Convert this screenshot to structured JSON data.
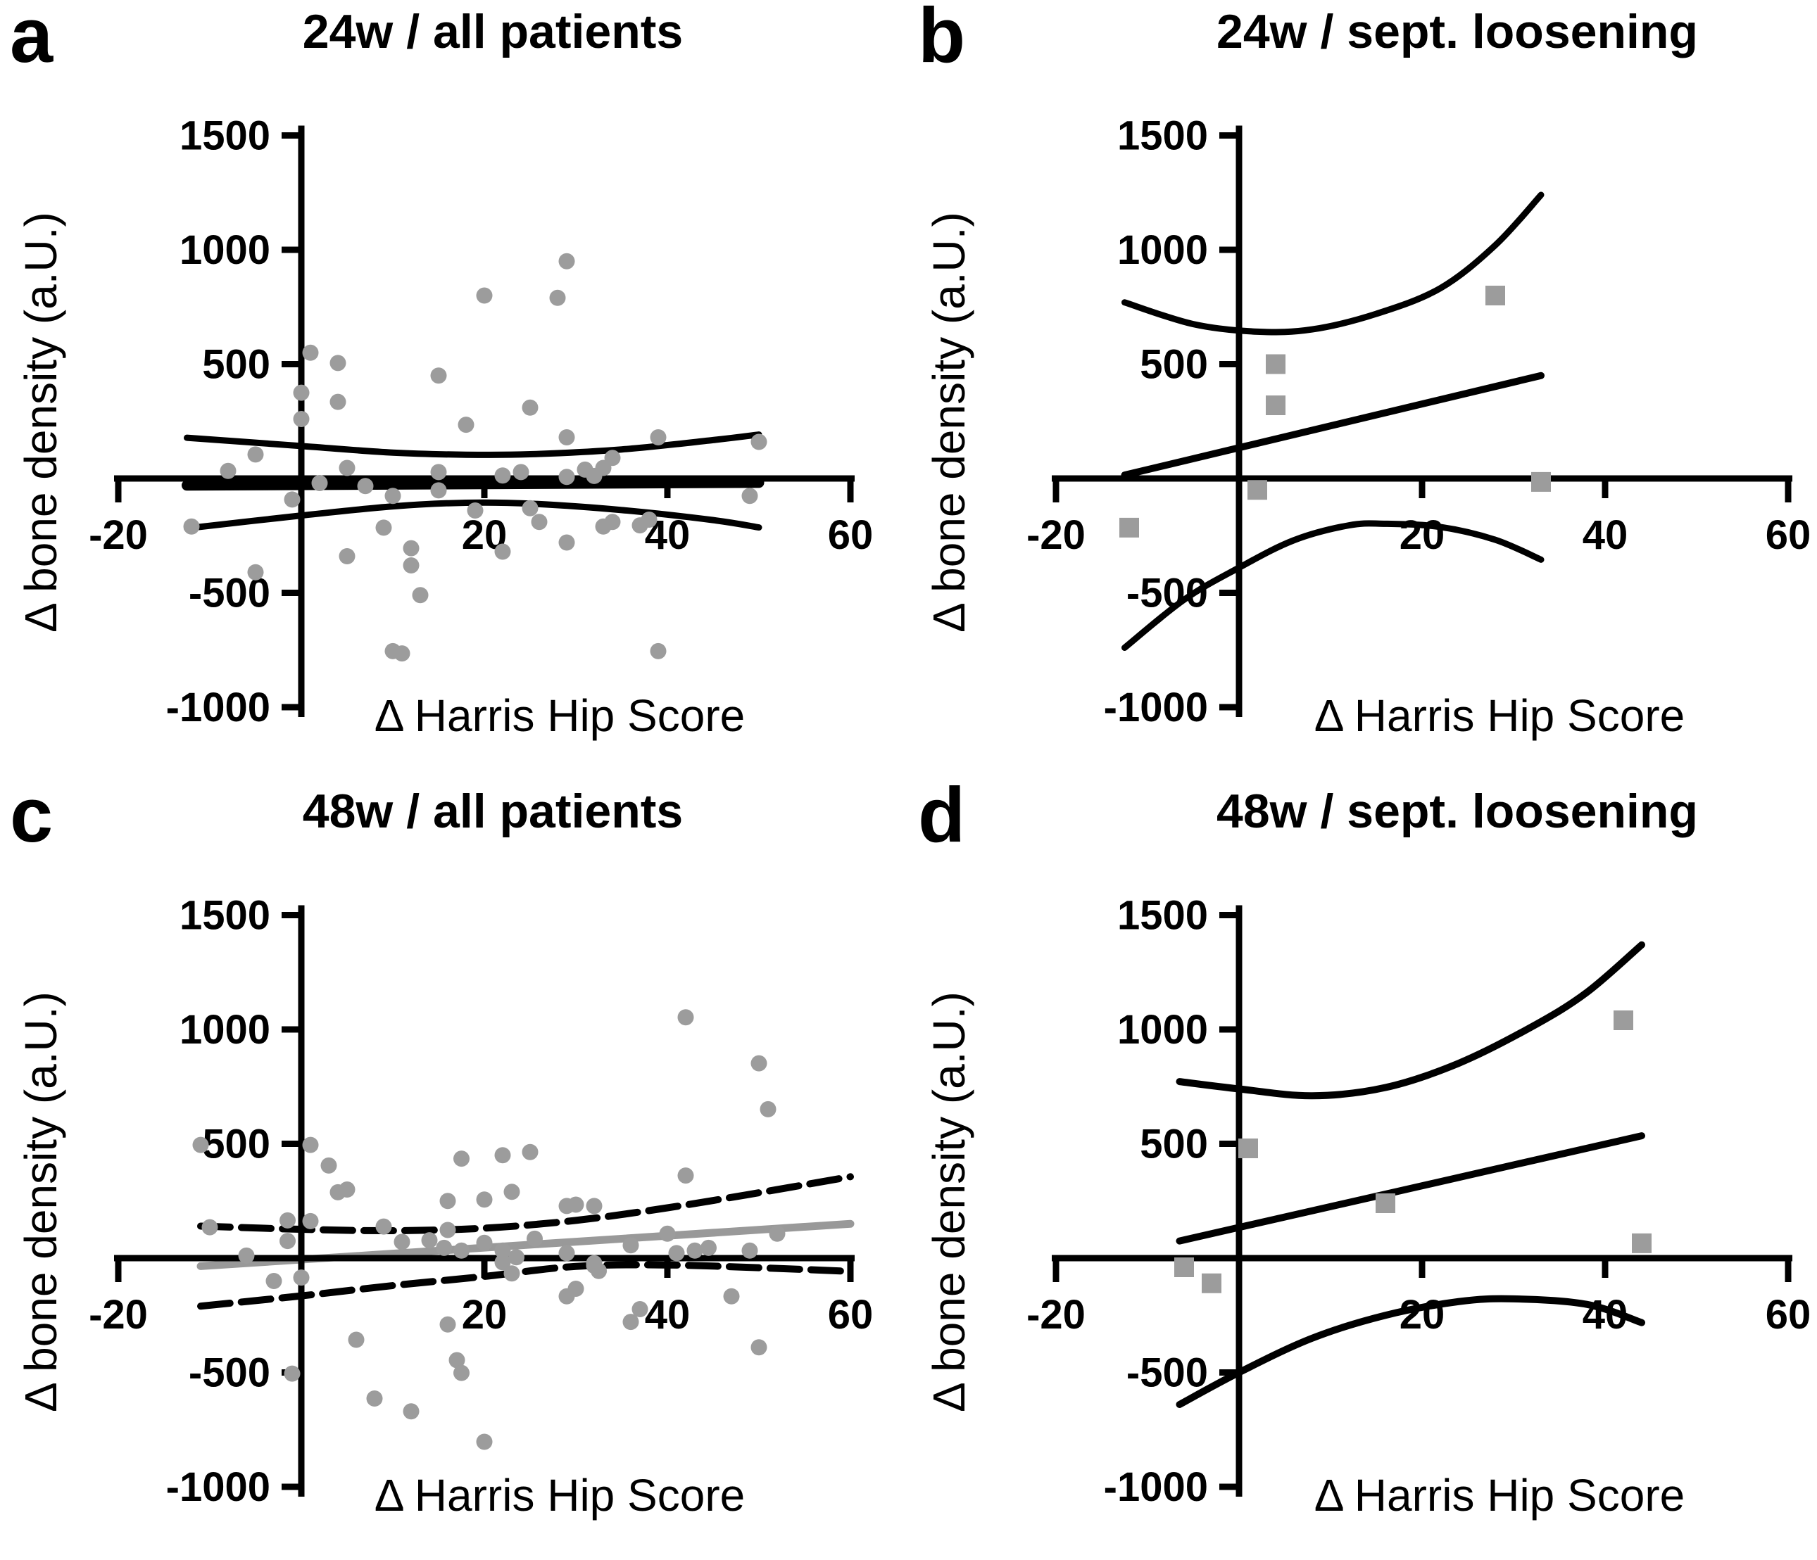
{
  "figure": {
    "background": "#ffffff",
    "marker_color": "#9c9c9c",
    "line_color": "#000000",
    "gray_line_color": "#999999"
  },
  "chart_data": [
    {
      "id": "a",
      "panel_label": "a",
      "title": "24w / all patients",
      "type": "scatter",
      "marker": "circle",
      "xlabel": "Δ Harris Hip Score",
      "ylabel": "Δ bone density (a.U.)",
      "xlim": [
        -20,
        60
      ],
      "ylim": [
        -1000,
        1500
      ],
      "xticks": [
        -20,
        20,
        40,
        60
      ],
      "yticks": [
        1500,
        1000,
        500,
        -500,
        -1000
      ],
      "grid": false,
      "legend": "none",
      "marker_color": "#9c9c9c",
      "points": [
        [
          1,
          550
        ],
        [
          4,
          505
        ],
        [
          4,
          335
        ],
        [
          0,
          375
        ],
        [
          0,
          260
        ],
        [
          15,
          450
        ],
        [
          20,
          800
        ],
        [
          29,
          950
        ],
        [
          28,
          790
        ],
        [
          25,
          310
        ],
        [
          18,
          235
        ],
        [
          29,
          180
        ],
        [
          39,
          180
        ],
        [
          50,
          160
        ],
        [
          -5,
          105
        ],
        [
          -8,
          33
        ],
        [
          -12,
          -210
        ],
        [
          -5,
          -410
        ],
        [
          -1,
          -92
        ],
        [
          2,
          -20
        ],
        [
          5,
          46
        ],
        [
          5,
          -340
        ],
        [
          7,
          -33
        ],
        [
          9,
          -215
        ],
        [
          10,
          -76
        ],
        [
          12,
          -305
        ],
        [
          12,
          -380
        ],
        [
          13,
          -510
        ],
        [
          10,
          -755
        ],
        [
          11,
          -765
        ],
        [
          15,
          28
        ],
        [
          15,
          -52
        ],
        [
          19,
          -140
        ],
        [
          22,
          13
        ],
        [
          22,
          -320
        ],
        [
          24,
          28
        ],
        [
          25,
          -130
        ],
        [
          26,
          -190
        ],
        [
          29,
          -280
        ],
        [
          29,
          7
        ],
        [
          31,
          39
        ],
        [
          32,
          11
        ],
        [
          33,
          46
        ],
        [
          33,
          -210
        ],
        [
          34,
          -190
        ],
        [
          34,
          90
        ],
        [
          37,
          -205
        ],
        [
          38,
          -180
        ],
        [
          39,
          -755
        ],
        [
          49,
          -76
        ]
      ],
      "regression": {
        "points": [
          [
            -12.5,
            -30
          ],
          [
            50,
            -18
          ]
        ],
        "color": "#000000",
        "width": 15,
        "dashed": false
      },
      "ci_upper": {
        "points": [
          [
            -12.5,
            178
          ],
          [
            0,
            142
          ],
          [
            10,
            113
          ],
          [
            18,
            104
          ],
          [
            25,
            106
          ],
          [
            35,
            127
          ],
          [
            45,
            168
          ],
          [
            50,
            192
          ]
        ],
        "color": "#000000",
        "width": 9,
        "dashed": false
      },
      "ci_lower": {
        "points": [
          [
            -12.5,
            -218
          ],
          [
            0,
            -162
          ],
          [
            10,
            -122
          ],
          [
            18,
            -106
          ],
          [
            25,
            -110
          ],
          [
            35,
            -138
          ],
          [
            45,
            -182
          ],
          [
            50,
            -214
          ]
        ],
        "color": "#000000",
        "width": 9,
        "dashed": false
      }
    },
    {
      "id": "b",
      "panel_label": "b",
      "title": "24w / sept. loosening",
      "type": "scatter",
      "marker": "square",
      "xlabel": "Δ Harris Hip Score",
      "ylabel": "Δ bone density (a.U.)",
      "xlim": [
        -20,
        60
      ],
      "ylim": [
        -1000,
        1500
      ],
      "xticks": [
        -20,
        20,
        40,
        60
      ],
      "yticks": [
        1500,
        1000,
        500,
        -500,
        -1000
      ],
      "grid": false,
      "legend": "none",
      "marker_color": "#9c9c9c",
      "points": [
        [
          -12,
          -215
        ],
        [
          2,
          -50
        ],
        [
          4,
          500
        ],
        [
          4,
          320
        ],
        [
          28,
          800
        ],
        [
          33,
          -15
        ]
      ],
      "regression": {
        "points": [
          [
            -12.5,
            15
          ],
          [
            33,
            450
          ]
        ],
        "color": "#000000",
        "width": 10,
        "dashed": false
      },
      "ci_upper": {
        "points": [
          [
            -12.5,
            770
          ],
          [
            -5,
            675
          ],
          [
            2,
            642
          ],
          [
            8,
            652
          ],
          [
            15,
            720
          ],
          [
            22,
            832
          ],
          [
            28,
            1020
          ],
          [
            33,
            1240
          ]
        ],
        "color": "#000000",
        "width": 9,
        "dashed": false
      },
      "ci_lower": {
        "points": [
          [
            -12.5,
            -740
          ],
          [
            -6,
            -530
          ],
          [
            0,
            -390
          ],
          [
            6,
            -270
          ],
          [
            12,
            -205
          ],
          [
            16,
            -198
          ],
          [
            22,
            -212
          ],
          [
            28,
            -268
          ],
          [
            33,
            -355
          ]
        ],
        "color": "#000000",
        "width": 9,
        "dashed": false
      }
    },
    {
      "id": "c",
      "panel_label": "c",
      "title": "48w / all patients",
      "type": "scatter",
      "marker": "circle",
      "xlabel": "Δ Harris Hip Score",
      "ylabel": "Δ bone density (a.U.)",
      "xlim": [
        -20,
        60
      ],
      "ylim": [
        -1000,
        1500
      ],
      "xticks": [
        -20,
        20,
        40,
        60
      ],
      "yticks": [
        1500,
        1000,
        500,
        -500,
        -1000
      ],
      "grid": false,
      "legend": "none",
      "marker_color": "#9c9c9c",
      "points": [
        [
          -11,
          495
        ],
        [
          1,
          495
        ],
        [
          3,
          405
        ],
        [
          4,
          288
        ],
        [
          5,
          300
        ],
        [
          -10,
          135
        ],
        [
          -1.5,
          165
        ],
        [
          1,
          162
        ],
        [
          -1.5,
          75
        ],
        [
          -6,
          11
        ],
        [
          -3,
          -100
        ],
        [
          0,
          -85
        ],
        [
          17.5,
          435
        ],
        [
          22,
          450
        ],
        [
          25,
          464
        ],
        [
          16,
          250
        ],
        [
          20,
          256
        ],
        [
          23,
          290
        ],
        [
          16,
          123
        ],
        [
          9,
          138
        ],
        [
          11,
          71
        ],
        [
          14,
          78
        ],
        [
          15.6,
          45
        ],
        [
          17.5,
          33
        ],
        [
          20,
          67
        ],
        [
          22,
          33
        ],
        [
          23.5,
          4
        ],
        [
          25.5,
          85
        ],
        [
          29,
          228
        ],
        [
          30,
          234
        ],
        [
          32,
          228
        ],
        [
          29,
          22
        ],
        [
          32,
          -22
        ],
        [
          32.5,
          -56
        ],
        [
          36,
          56
        ],
        [
          40,
          107
        ],
        [
          41,
          22
        ],
        [
          42,
          361
        ],
        [
          42,
          1053
        ],
        [
          50,
          852
        ],
        [
          51,
          651
        ],
        [
          43,
          33
        ],
        [
          44.5,
          45
        ],
        [
          49,
          33
        ],
        [
          52,
          107
        ],
        [
          47,
          -167
        ],
        [
          50,
          -390
        ],
        [
          6,
          -357
        ],
        [
          -1,
          -505
        ],
        [
          8,
          -614
        ],
        [
          12,
          -670
        ],
        [
          16,
          -290
        ],
        [
          17,
          -446
        ],
        [
          17.5,
          -502
        ],
        [
          20,
          -803
        ],
        [
          36,
          -279
        ],
        [
          37,
          -223
        ],
        [
          29,
          -167
        ],
        [
          30,
          -134
        ],
        [
          32,
          -33
        ],
        [
          22,
          -18
        ],
        [
          23,
          -67
        ]
      ],
      "regression": {
        "points": [
          [
            -11,
            -35
          ],
          [
            60,
            150
          ]
        ],
        "color": "#999999",
        "width": 11,
        "dashed": false
      },
      "ci_upper": {
        "points": [
          [
            -11,
            140
          ],
          [
            0,
            126
          ],
          [
            10,
            120
          ],
          [
            20,
            131
          ],
          [
            30,
            165
          ],
          [
            40,
            220
          ],
          [
            50,
            286
          ],
          [
            60,
            356
          ]
        ],
        "color": "#000000",
        "width": 10,
        "dashed": true
      },
      "ci_lower": {
        "points": [
          [
            -11,
            -210
          ],
          [
            0,
            -165
          ],
          [
            10,
            -120
          ],
          [
            20,
            -80
          ],
          [
            30,
            -36
          ],
          [
            40,
            -30
          ],
          [
            50,
            -42
          ],
          [
            60,
            -58
          ]
        ],
        "color": "#000000",
        "width": 10,
        "dashed": true
      }
    },
    {
      "id": "d",
      "panel_label": "d",
      "title": "48w / sept. loosening",
      "type": "scatter",
      "marker": "square",
      "xlabel": "Δ Harris Hip Score",
      "ylabel": "Δ bone density (a.U.)",
      "xlim": [
        -20,
        60
      ],
      "ylim": [
        -1000,
        1500
      ],
      "xticks": [
        -20,
        20,
        40,
        60
      ],
      "yticks": [
        1500,
        1000,
        500,
        -500,
        -1000
      ],
      "grid": false,
      "legend": "none",
      "marker_color": "#9c9c9c",
      "points": [
        [
          1,
          480
        ],
        [
          16,
          240
        ],
        [
          42,
          1040
        ],
        [
          -6,
          -40
        ],
        [
          -3,
          -110
        ],
        [
          44,
          65
        ]
      ],
      "regression": {
        "points": [
          [
            -6.5,
            75
          ],
          [
            44,
            535
          ]
        ],
        "color": "#000000",
        "width": 10,
        "dashed": false
      },
      "ci_upper": {
        "points": [
          [
            -6.5,
            772
          ],
          [
            0,
            740
          ],
          [
            8,
            710
          ],
          [
            16,
            746
          ],
          [
            24,
            852
          ],
          [
            32,
            1012
          ],
          [
            38,
            1162
          ],
          [
            44,
            1370
          ]
        ],
        "color": "#000000",
        "width": 10,
        "dashed": false
      },
      "ci_lower": {
        "points": [
          [
            -6.5,
            -640
          ],
          [
            0,
            -500
          ],
          [
            8,
            -350
          ],
          [
            16,
            -250
          ],
          [
            24,
            -190
          ],
          [
            30,
            -178
          ],
          [
            38,
            -202
          ],
          [
            44,
            -282
          ]
        ],
        "color": "#000000",
        "width": 10,
        "dashed": false
      }
    }
  ]
}
